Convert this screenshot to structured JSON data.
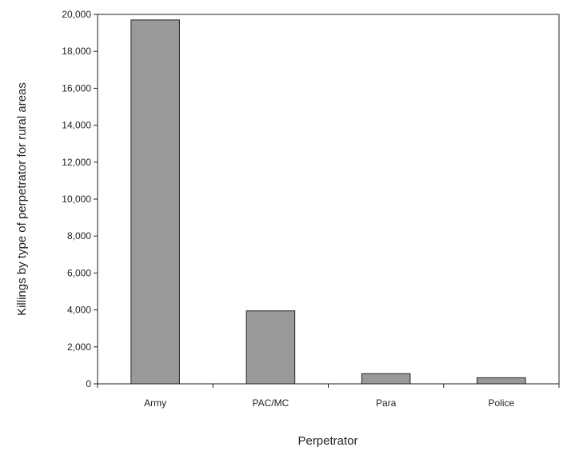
{
  "chart_data": {
    "type": "bar",
    "categories": [
      "Army",
      "PAC/MC",
      "Para",
      "Police"
    ],
    "values": [
      19700,
      3950,
      550,
      330
    ],
    "xlabel": "Perpetrator",
    "ylabel": "Killings by type of perpetrator for rural areas",
    "ylim": [
      0,
      20000
    ],
    "yticks": [
      0,
      2000,
      4000,
      6000,
      8000,
      10000,
      12000,
      14000,
      16000,
      18000,
      20000
    ],
    "ytick_labels": [
      "0",
      "2,000",
      "4,000",
      "6,000",
      "8,000",
      "10,000",
      "12,000",
      "14,000",
      "16,000",
      "18,000",
      "20,000"
    ],
    "grid": false,
    "legend": "none",
    "colors": {
      "bar_fill": "#999999",
      "bar_stroke": "#222222",
      "axis": "#222222"
    }
  }
}
